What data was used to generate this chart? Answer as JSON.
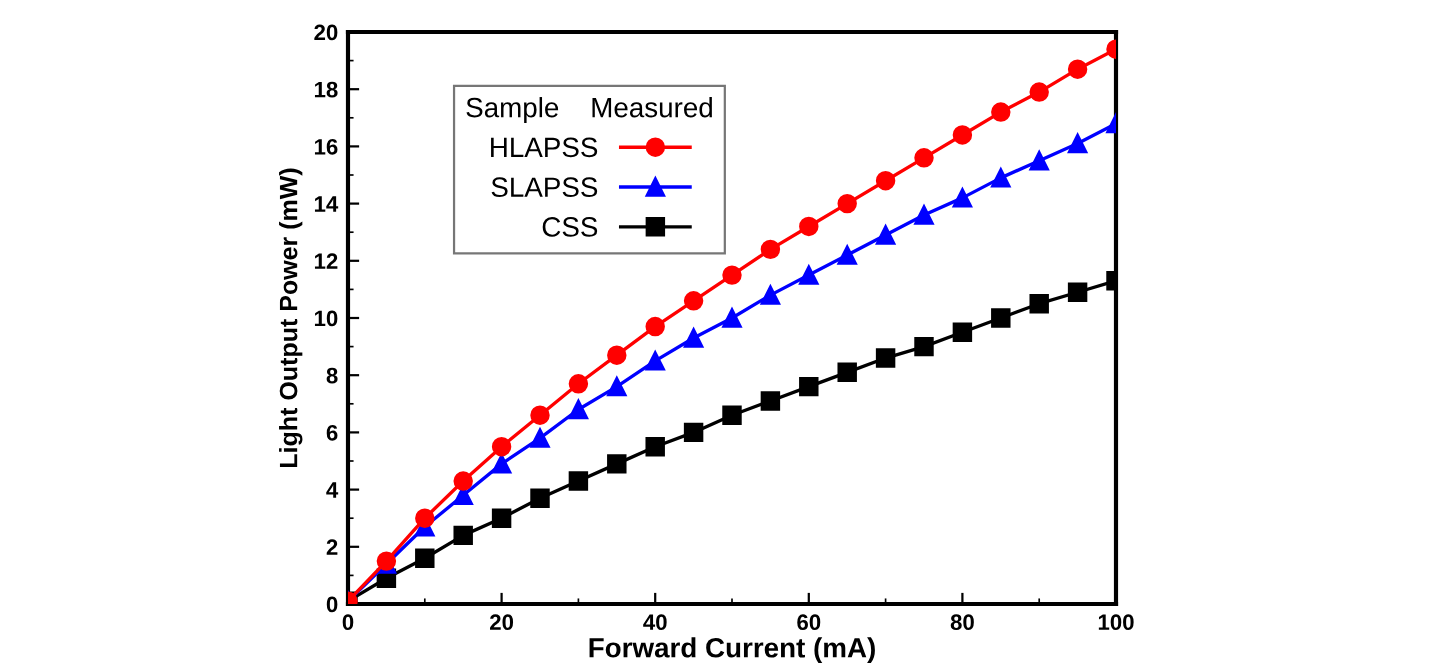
{
  "chart_data": {
    "type": "line",
    "xlabel": "Forward Current (mA)",
    "ylabel": "Light Output Power (mW)",
    "legend_title": "Sample    Measured",
    "legend": "top left",
    "grid": false,
    "x": [
      0,
      5,
      10,
      15,
      20,
      25,
      30,
      35,
      40,
      45,
      50,
      55,
      60,
      65,
      70,
      75,
      80,
      85,
      90,
      95,
      100
    ],
    "xlim": [
      0,
      100
    ],
    "xticks": [
      0,
      20,
      40,
      60,
      80,
      100
    ],
    "ylim": [
      0,
      20
    ],
    "yticks": [
      0,
      2,
      4,
      6,
      8,
      10,
      12,
      14,
      16,
      18,
      20
    ],
    "series": [
      {
        "name": "HLAPSS",
        "color": "#ff0000",
        "marker": "circle",
        "values": [
          0.1,
          1.5,
          3.0,
          4.3,
          5.5,
          6.6,
          7.7,
          8.7,
          9.7,
          10.6,
          11.5,
          12.4,
          13.2,
          14.0,
          14.8,
          15.6,
          16.4,
          17.2,
          17.9,
          18.7,
          19.4
        ]
      },
      {
        "name": "SLAPSS",
        "color": "#0000ff",
        "marker": "triangle",
        "values": [
          0.1,
          1.4,
          2.7,
          3.8,
          4.9,
          5.8,
          6.8,
          7.6,
          8.5,
          9.3,
          10.0,
          10.8,
          11.5,
          12.2,
          12.9,
          13.6,
          14.2,
          14.9,
          15.5,
          16.1,
          16.8
        ]
      },
      {
        "name": "CSS",
        "color": "#000000",
        "marker": "square",
        "values": [
          0.1,
          0.9,
          1.6,
          2.4,
          3.0,
          3.7,
          4.3,
          4.9,
          5.5,
          6.0,
          6.6,
          7.1,
          7.6,
          8.1,
          8.6,
          9.0,
          9.5,
          10.0,
          10.5,
          10.9,
          11.3
        ]
      }
    ]
  }
}
